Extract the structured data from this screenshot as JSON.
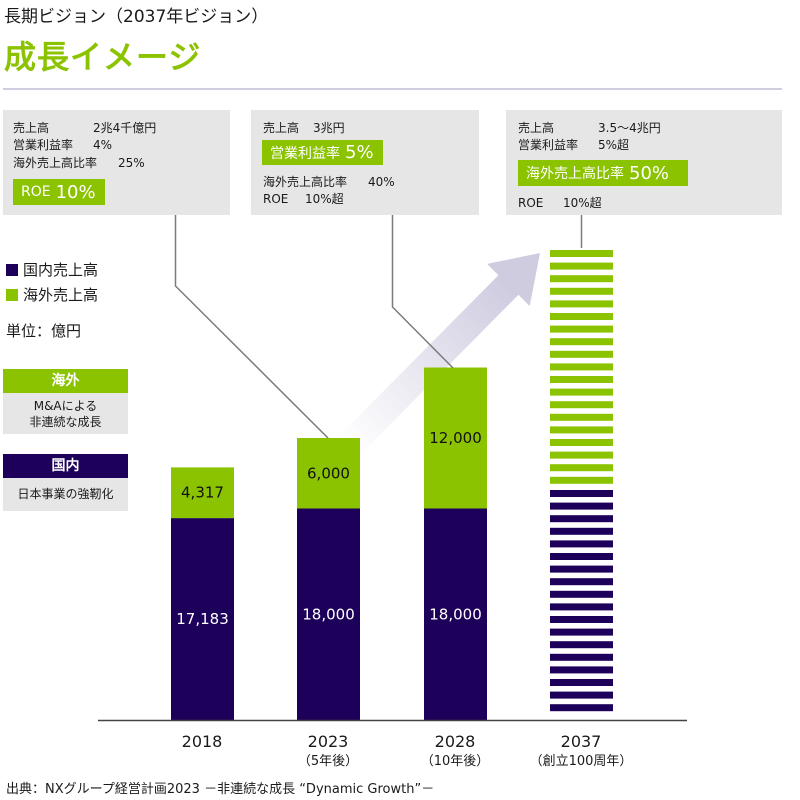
{
  "header": {
    "subtitle": "長期ビジョン（2037年ビジョン）",
    "title": "成長イメージ"
  },
  "colors": {
    "domestic": "#1c005a",
    "overseas": "#8cc300",
    "box_bg": "#e6e6e6",
    "arrow": "#cfcce0",
    "rule": "#cfcde0"
  },
  "info_boxes": [
    {
      "rows": [
        {
          "label": "売上高",
          "value": "2兆4千億円"
        },
        {
          "label": "営業利益率",
          "value": "4%"
        },
        {
          "label": "海外売上高比率",
          "value": "25%"
        }
      ],
      "highlight": {
        "label": "ROE",
        "value": "10%"
      }
    },
    {
      "rows": [
        {
          "label": "売上高",
          "value": "3兆円"
        },
        {
          "label": "海外売上高比率",
          "value": "40%"
        },
        {
          "label": "ROE",
          "value": "10%超"
        }
      ],
      "highlight": {
        "label": "営業利益率",
        "value": "5%"
      }
    },
    {
      "rows": [
        {
          "label": "売上高",
          "value": "3.5〜4兆円"
        },
        {
          "label": "営業利益率",
          "value": "5%超"
        },
        {
          "label": "ROE",
          "value": "10%超"
        }
      ],
      "highlight": {
        "label": "海外売上高比率",
        "value": "50%"
      }
    }
  ],
  "legend": {
    "items": [
      {
        "label": "国内売上高",
        "color": "#1c005a"
      },
      {
        "label": "海外売上高",
        "color": "#8cc300"
      }
    ],
    "unit": "単位：億円"
  },
  "side_notes": [
    {
      "heading": "海外",
      "lines": [
        "M&Aによる",
        "非連続な成長"
      ]
    },
    {
      "heading": "国内",
      "lines": [
        "日本事業の強靭化"
      ]
    }
  ],
  "chart_data": {
    "type": "bar",
    "stacked": true,
    "title": "成長イメージ",
    "xlabel": "",
    "ylabel": "億円",
    "categories": [
      "2018",
      "2023",
      "2028",
      "2037"
    ],
    "category_sublabels": [
      "",
      "（5年後）",
      "（10年後）",
      "（創立100周年）"
    ],
    "series": [
      {
        "name": "国内売上高",
        "values": [
          17183,
          18000,
          18000,
          20000
        ],
        "labels": [
          "17,183",
          "18,000",
          "18,000",
          null
        ],
        "color": "#1c005a"
      },
      {
        "name": "海外売上高",
        "values": [
          4317,
          6000,
          12000,
          20000
        ],
        "labels": [
          "4,317",
          "6,000",
          "12,000",
          null
        ],
        "color": "#8cc300"
      }
    ],
    "striped_categories": [
      "2037"
    ],
    "ylim": [
      0,
      40000
    ],
    "grid": false,
    "legend_position": "left"
  },
  "footer": {
    "source": "出典：NXグループ経営計画2023 －非連続な成長 “Dynamic Growth”－"
  }
}
